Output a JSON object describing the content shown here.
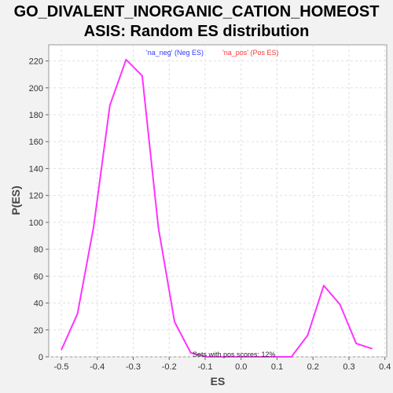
{
  "chart_data": {
    "type": "line",
    "title_line1": "GO_DIVALENT_INORGANIC_CATION_HOMEOST",
    "title_line2": "ASIS: Random ES distribution",
    "xlabel": "ES",
    "ylabel": "P(ES)",
    "xlim": [
      -0.535,
      0.405
    ],
    "ylim": [
      0,
      232
    ],
    "x_ticks": [
      -0.5,
      -0.4,
      -0.3,
      -0.2,
      -0.1,
      0.0,
      0.1,
      0.2,
      0.3,
      0.4
    ],
    "x_tick_labels": [
      "-0.5",
      "-0.4",
      "-0.3",
      "-0.2",
      "-0.1",
      "0.0",
      "0.1",
      "0.2",
      "0.3",
      "0.4"
    ],
    "y_ticks": [
      0,
      20,
      40,
      60,
      80,
      100,
      120,
      140,
      160,
      180,
      200,
      220
    ],
    "grid": true,
    "legend": {
      "placement": "top-center",
      "entries": [
        {
          "label": "'na_neg' (Neg ES)",
          "color": "#3333ff"
        },
        {
          "label": "'na_pos' (Pos ES)",
          "color": "#ff3333"
        }
      ]
    },
    "annotation": "Sets with pos scores: 12%",
    "series": [
      {
        "color": "#ff33ff",
        "x": [
          -0.5,
          -0.455,
          -0.41,
          -0.365,
          -0.32,
          -0.275,
          -0.23,
          -0.185,
          -0.14,
          -0.095,
          -0.05,
          -0.005,
          0.04,
          0.085,
          0.13,
          0.14,
          0.185,
          0.23,
          0.275,
          0.32,
          0.365
        ],
        "y": [
          5,
          32,
          97,
          187,
          221,
          209,
          96,
          26,
          3,
          0,
          0,
          0,
          0,
          0,
          0,
          0,
          16,
          53,
          39,
          10,
          6
        ]
      }
    ]
  }
}
